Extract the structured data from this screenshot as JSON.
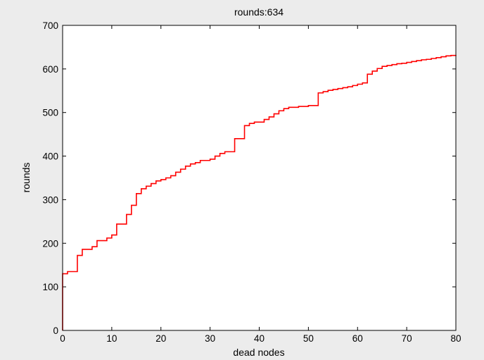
{
  "chart_data": {
    "type": "line",
    "title": "rounds:634",
    "xlabel": "dead nodes",
    "ylabel": "rounds",
    "xlim": [
      0,
      80
    ],
    "ylim": [
      0,
      700
    ],
    "xticks": [
      0,
      10,
      20,
      30,
      40,
      50,
      60,
      70,
      80
    ],
    "yticks": [
      0,
      100,
      200,
      300,
      400,
      500,
      600,
      700
    ],
    "grid": false,
    "step": "post",
    "series": [
      {
        "color": "#ff0000",
        "x": [
          0,
          0,
          1,
          3,
          4,
          6,
          7,
          9,
          10,
          11,
          13,
          14,
          15,
          16,
          17,
          18,
          19,
          20,
          21,
          22,
          23,
          24,
          25,
          26,
          27,
          28,
          30,
          31,
          32,
          33,
          35,
          37,
          38,
          39,
          41,
          42,
          43,
          44,
          45,
          46,
          48,
          50,
          52,
          53,
          54,
          55,
          56,
          57,
          58,
          59,
          60,
          61,
          62,
          63,
          64,
          65,
          66,
          67,
          68,
          69,
          70,
          71,
          72,
          73,
          74,
          75,
          76,
          77,
          78,
          79,
          80
        ],
        "y": [
          0,
          130,
          135,
          172,
          186,
          192,
          206,
          212,
          219,
          244,
          266,
          287,
          314,
          325,
          331,
          337,
          343,
          346,
          350,
          355,
          363,
          370,
          377,
          382,
          385,
          390,
          393,
          400,
          406,
          410,
          440,
          470,
          475,
          478,
          484,
          490,
          497,
          504,
          509,
          512,
          514,
          516,
          545,
          548,
          551,
          553,
          555,
          557,
          559,
          562,
          565,
          568,
          588,
          595,
          601,
          606,
          608,
          610,
          612,
          613,
          615,
          617,
          619,
          621,
          622,
          624,
          626,
          628,
          630,
          631,
          632
        ]
      }
    ]
  }
}
